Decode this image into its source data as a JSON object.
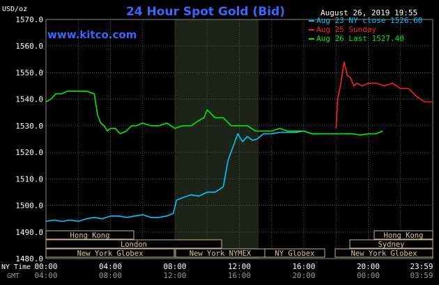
{
  "chart_data": {
    "type": "line",
    "title": "24 Hour Spot Gold (Bid)",
    "website": "www.kitco.com",
    "timestamp": "August 26, 2019 19:55",
    "y_unit_label": "USD/oz",
    "ylim": [
      1480,
      1570
    ],
    "y_ticks": [
      "1570.0",
      "1560.0",
      "1550.0",
      "1540.0",
      "1530.0",
      "1520.0",
      "1510.0",
      "1500.0",
      "1490.0",
      "1480.0"
    ],
    "x_row_labels": [
      "NY Time",
      "GMT"
    ],
    "x_ticks_ny": [
      "00:00",
      "04:00",
      "08:00",
      "12:00",
      "16:00",
      "20:00",
      "23:59"
    ],
    "x_ticks_gmt": [
      "04:00",
      "08:00",
      "12:00",
      "16:00",
      "20:00",
      "00:00",
      "03:59"
    ],
    "grid": true,
    "legend_position": "top-right",
    "series": [
      {
        "name": "Aug 23 NY close 1526.60",
        "color": "#00c8ff",
        "x_hours": [
          0,
          0.5,
          1,
          1.5,
          2,
          2.5,
          3,
          3.5,
          4,
          4.5,
          5,
          5.5,
          6,
          6.5,
          7,
          7.5,
          7.9,
          8.1,
          8.5,
          9,
          9.5,
          10,
          10.5,
          11,
          11.3,
          11.6,
          11.9,
          12.2,
          12.5,
          12.8,
          13.1,
          13.5,
          14,
          14.5,
          15,
          15.5,
          16,
          16.5,
          17
        ],
        "values": [
          1494,
          1494.5,
          1494,
          1494.5,
          1494,
          1495,
          1495.5,
          1495,
          1496,
          1496,
          1495.5,
          1496,
          1496.5,
          1495.5,
          1495.5,
          1496,
          1497,
          1502,
          1503,
          1504,
          1503.5,
          1505,
          1505,
          1507,
          1517,
          1522,
          1527,
          1524,
          1526,
          1524.5,
          1525,
          1527,
          1527,
          1527.5,
          1527.5,
          1527.5,
          1528,
          1527,
          1527
        ]
      },
      {
        "name": "Aug 25 Sunday",
        "color": "#ff2020",
        "x_hours": [
          18,
          18.1,
          18.3,
          18.5,
          18.7,
          18.9,
          19.1,
          19.3,
          19.6,
          20,
          20.5,
          21,
          21.5,
          22,
          22.5,
          23,
          23.5,
          24
        ],
        "values": [
          1529,
          1540,
          1546,
          1554,
          1549,
          1548,
          1545,
          1546,
          1545,
          1546,
          1546,
          1545,
          1546,
          1544,
          1544,
          1541,
          1539,
          1539
        ]
      },
      {
        "name": "Aug 26 Last 1527.40",
        "color": "#00ee00",
        "x_hours": [
          0,
          0.3,
          0.6,
          1,
          1.3,
          1.6,
          2,
          2.5,
          3,
          3.2,
          3.4,
          3.6,
          3.8,
          4,
          4.3,
          4.6,
          5,
          5.3,
          5.6,
          6,
          6.5,
          7,
          7.5,
          8,
          8.5,
          9,
          9.5,
          9.8,
          10,
          10.5,
          11,
          11.5,
          12,
          12.5,
          13,
          13.5,
          14,
          14.5,
          15,
          15.5,
          16,
          16.5,
          17,
          17.5,
          18,
          18.5,
          19,
          19.5,
          20,
          20.5,
          20.9
        ],
        "values": [
          1539,
          1540,
          1542,
          1542,
          1543,
          1543,
          1543,
          1543,
          1542,
          1534,
          1531,
          1530,
          1528,
          1529,
          1529,
          1527,
          1528,
          1530,
          1530,
          1531,
          1530,
          1530,
          1531,
          1529,
          1530,
          1530,
          1532,
          1533,
          1536,
          1533,
          1533,
          1530,
          1530,
          1530,
          1528,
          1528,
          1528,
          1529,
          1528,
          1528,
          1528,
          1527,
          1527,
          1527,
          1527,
          1527,
          1527,
          1526.5,
          1527,
          1527,
          1528
        ]
      }
    ],
    "market_bars": [
      {
        "label": "Hong Kong",
        "row": 0
      },
      {
        "label": "London",
        "row": 1
      },
      {
        "label": "New York Globex",
        "row": 2
      },
      {
        "label": "New York NYMEX",
        "row": 2
      },
      {
        "label": "NY Globex",
        "row": 2
      },
      {
        "label": "Hong Kong",
        "row": 0
      },
      {
        "label": "Sydney",
        "row": 1
      },
      {
        "label": "New York Globex",
        "row": 2
      }
    ]
  }
}
